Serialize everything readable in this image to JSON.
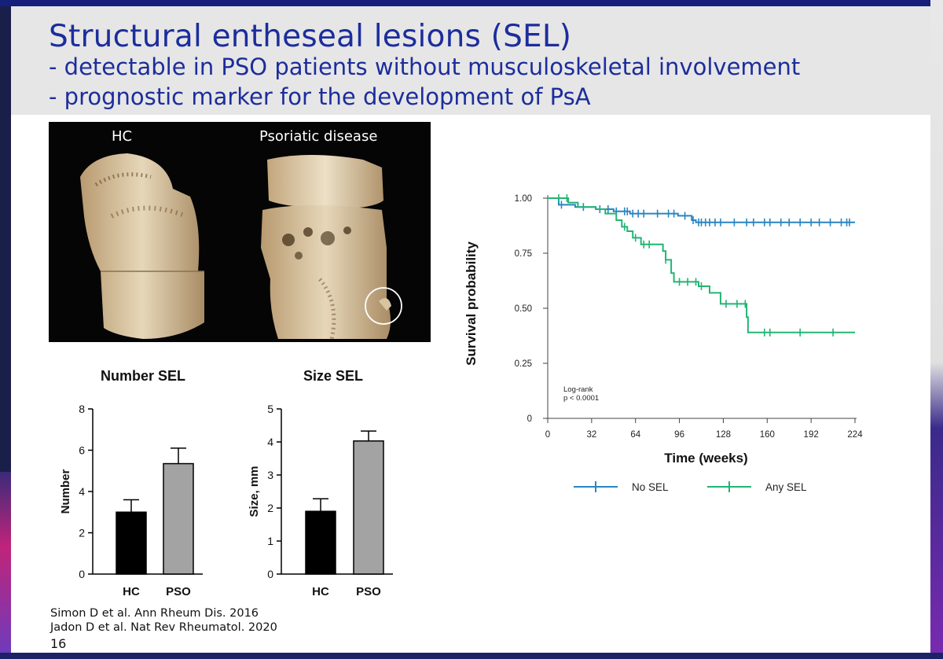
{
  "slide": {
    "title": "Structural entheseal lesions (SEL)",
    "bullets": [
      "- detectable in PSO patients without musculoskeletal involvement",
      "- prognostic marker for the development of PsA"
    ],
    "image_labels": {
      "left": "HC",
      "right": "Psoriatic disease"
    },
    "references": [
      "Simon D et al. Ann Rheum Dis. 2016",
      "Jadon D et al. Nat Rev Rheumatol. 2020"
    ],
    "page_number": "16"
  },
  "colors": {
    "title": "#1c2d9c",
    "no_sel": "#2a85c2",
    "any_sel": "#22b573",
    "hc_bar": "#000000",
    "pso_bar": "#a3a3a3"
  },
  "chart_data": [
    {
      "type": "bar",
      "title": "Number SEL",
      "ylabel": "Number",
      "categories": [
        "HC",
        "PSO"
      ],
      "values": [
        3.0,
        5.35
      ],
      "error": [
        0.6,
        0.75
      ],
      "ylim": [
        0,
        8
      ],
      "yticks": [
        0,
        2,
        4,
        6,
        8
      ]
    },
    {
      "type": "bar",
      "title": "Size SEL",
      "ylabel": "Size, mm",
      "categories": [
        "HC",
        "PSO"
      ],
      "values": [
        1.9,
        4.03
      ],
      "error": [
        0.38,
        0.3
      ],
      "ylim": [
        0,
        5
      ],
      "yticks": [
        0,
        1,
        2,
        3,
        4,
        5
      ]
    },
    {
      "type": "line",
      "xlabel": "Time (weeks)",
      "ylabel": "Survival probability",
      "xlim": [
        0,
        224
      ],
      "ylim": [
        0,
        1
      ],
      "xticks": [
        0,
        32,
        64,
        96,
        128,
        160,
        192,
        224
      ],
      "yticks": [
        0,
        0.25,
        0.5,
        0.75,
        1.0
      ],
      "ytick_labels": [
        "0",
        "0.25",
        "0.50",
        "0.75",
        "1.00"
      ],
      "annotation": [
        "Log-rank",
        "p < 0.0001"
      ],
      "legend_position": "bottom",
      "series": [
        {
          "name": "No SEL",
          "steps": [
            [
              0,
              1.0
            ],
            [
              8,
              0.97
            ],
            [
              20,
              0.96
            ],
            [
              35,
              0.95
            ],
            [
              48,
              0.94
            ],
            [
              60,
              0.93
            ],
            [
              95,
              0.92
            ],
            [
              105,
              0.9
            ],
            [
              108,
              0.89
            ],
            [
              114,
              0.89
            ],
            [
              128,
              0.89
            ],
            [
              160,
              0.89
            ],
            [
              224,
              0.89
            ]
          ],
          "censored": [
            10,
            26,
            38,
            44,
            50,
            56,
            58,
            62,
            66,
            70,
            80,
            88,
            92,
            100,
            106,
            110,
            112,
            115,
            118,
            122,
            126,
            136,
            145,
            150,
            158,
            162,
            170,
            176,
            184,
            192,
            198,
            206,
            214,
            218,
            220
          ]
        },
        {
          "name": "Any SEL",
          "steps": [
            [
              0,
              1.0
            ],
            [
              15,
              0.98
            ],
            [
              22,
              0.96
            ],
            [
              35,
              0.95
            ],
            [
              42,
              0.93
            ],
            [
              50,
              0.9
            ],
            [
              54,
              0.87
            ],
            [
              58,
              0.85
            ],
            [
              62,
              0.82
            ],
            [
              68,
              0.79
            ],
            [
              84,
              0.76
            ],
            [
              86,
              0.72
            ],
            [
              90,
              0.66
            ],
            [
              92,
              0.62
            ],
            [
              110,
              0.6
            ],
            [
              118,
              0.57
            ],
            [
              126,
              0.52
            ],
            [
              145,
              0.46
            ],
            [
              146,
              0.39
            ],
            [
              224,
              0.39
            ]
          ],
          "censored": [
            8,
            14,
            56,
            64,
            70,
            74,
            86,
            96,
            102,
            108,
            112,
            130,
            138,
            144,
            158,
            162,
            184,
            208
          ]
        }
      ]
    }
  ]
}
